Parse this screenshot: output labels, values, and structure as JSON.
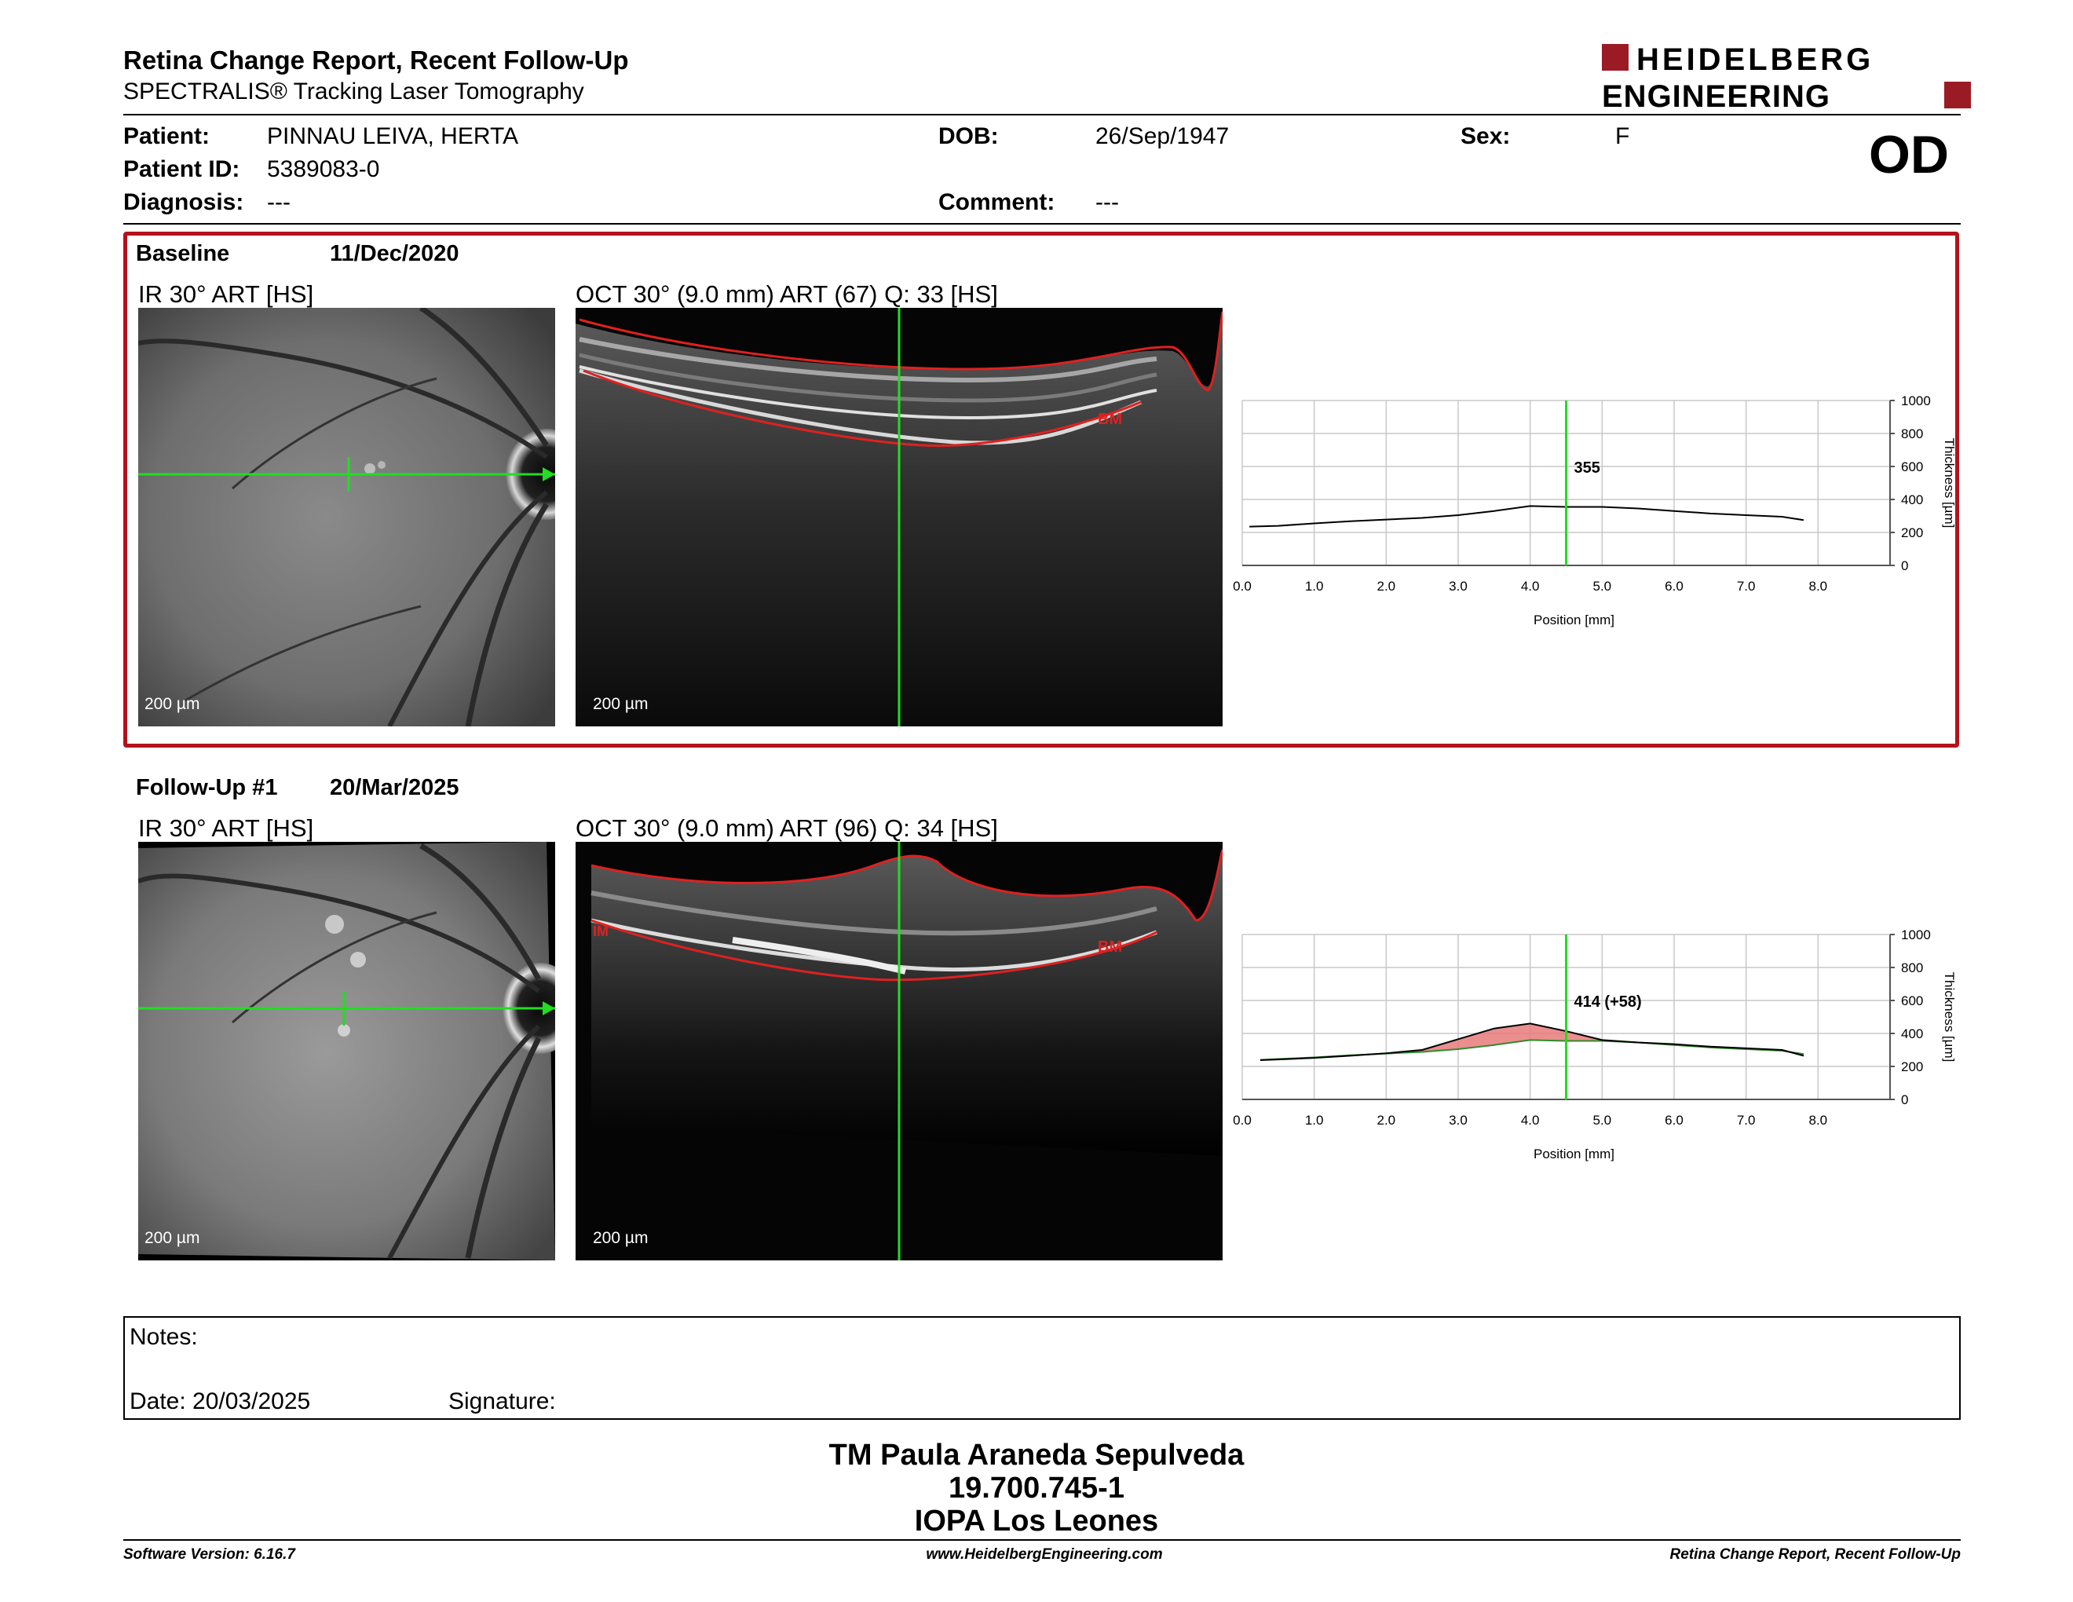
{
  "report": {
    "title": "Retina Change Report, Recent Follow-Up",
    "subtitle": "SPECTRALIS® Tracking Laser Tomography",
    "logo_line1": "HEIDELBERG",
    "logo_line2": "ENGINEERING",
    "eye": "OD"
  },
  "patient": {
    "name_label": "Patient:",
    "name": "PINNAU LEIVA, HERTA",
    "id_label": "Patient ID:",
    "id": "5389083-0",
    "diagnosis_label": "Diagnosis:",
    "diagnosis": "---",
    "dob_label": "DOB:",
    "dob": "26/Sep/1947",
    "comment_label": "Comment:",
    "comment": "---",
    "sex_label": "Sex:",
    "sex": "F"
  },
  "baseline": {
    "label": "Baseline",
    "date": "11/Dec/2020",
    "ir_label": "IR 30° ART [HS]",
    "oct_label": "OCT 30° (9.0 mm) ART (67) Q: 33 [HS]",
    "scale_ir": "200 µm",
    "scale_oct": "200 µm",
    "bm_label": "BM"
  },
  "followup": {
    "label": "Follow-Up #1",
    "date": "20/Mar/2025",
    "ir_label": "IR 30° ART [HS]",
    "oct_label": "OCT 30° (9.0 mm) ART (96) Q: 34 [HS]",
    "scale_ir": "200 µm",
    "scale_oct": "200 µm",
    "bm_label": "BM",
    "im_label": "IM"
  },
  "chart_data": [
    {
      "type": "line",
      "xlabel": "Position [mm]",
      "ylabel": "Thickness [µm]",
      "xlim": [
        0,
        9
      ],
      "ylim": [
        0,
        1000
      ],
      "x_ticks": [
        "0.0",
        "1.0",
        "2.0",
        "3.0",
        "4.0",
        "5.0",
        "6.0",
        "7.0",
        "8.0"
      ],
      "y_ticks": [
        "1000",
        "800",
        "600",
        "400",
        "200",
        "0"
      ],
      "grid": true,
      "marker_x": 4.5,
      "annotation": "355",
      "series": [
        {
          "x": [
            0.1,
            0.5,
            1.0,
            1.5,
            2.0,
            2.5,
            3.0,
            3.5,
            4.0,
            4.5,
            5.0,
            5.5,
            6.0,
            6.5,
            7.0,
            7.5,
            7.8
          ],
          "values": [
            235,
            240,
            255,
            268,
            278,
            288,
            305,
            330,
            360,
            355,
            355,
            345,
            330,
            315,
            305,
            295,
            275
          ],
          "color": "#000000"
        }
      ]
    },
    {
      "type": "area",
      "xlabel": "Position [mm]",
      "ylabel": "Thickness [µm]",
      "xlim": [
        0,
        9
      ],
      "ylim": [
        0,
        1000
      ],
      "x_ticks": [
        "0.0",
        "1.0",
        "2.0",
        "3.0",
        "4.0",
        "5.0",
        "6.0",
        "7.0",
        "8.0"
      ],
      "y_ticks": [
        "1000",
        "800",
        "600",
        "400",
        "200",
        "0"
      ],
      "grid": true,
      "marker_x": 4.5,
      "annotation": "414 (+58)",
      "fill_color": "#e87a7a",
      "series": [
        {
          "x": [
            0.25,
            0.5,
            1.0,
            1.5,
            2.0,
            2.5,
            3.0,
            3.5,
            4.0,
            4.5,
            5.0,
            5.5,
            6.0,
            6.5,
            7.0,
            7.5,
            7.8
          ],
          "values": [
            240,
            245,
            255,
            268,
            278,
            288,
            305,
            330,
            360,
            355,
            355,
            345,
            330,
            315,
            305,
            295,
            275
          ],
          "color": "#2e8b2e"
        },
        {
          "x": [
            0.25,
            0.5,
            1.0,
            1.5,
            2.0,
            2.5,
            3.0,
            3.5,
            4.0,
            4.5,
            5.0,
            5.5,
            6.0,
            6.5,
            7.0,
            7.5,
            7.8
          ],
          "values": [
            238,
            242,
            252,
            265,
            280,
            300,
            365,
            430,
            460,
            414,
            360,
            345,
            335,
            320,
            310,
            300,
            265
          ],
          "color": "#000000"
        }
      ]
    }
  ],
  "notes": {
    "notes_label": "Notes:",
    "date_label": "Date: 20/03/2025",
    "signature_label": "Signature:"
  },
  "signature": {
    "name": "TM Paula Araneda Sepulveda",
    "id": "19.700.745-1",
    "institution": "IOPA Los Leones"
  },
  "footer": {
    "software": "Software Version: 6.16.7",
    "website": "www.HeidelbergEngineering.com",
    "report": "Retina Change Report, Recent Follow-Up"
  }
}
